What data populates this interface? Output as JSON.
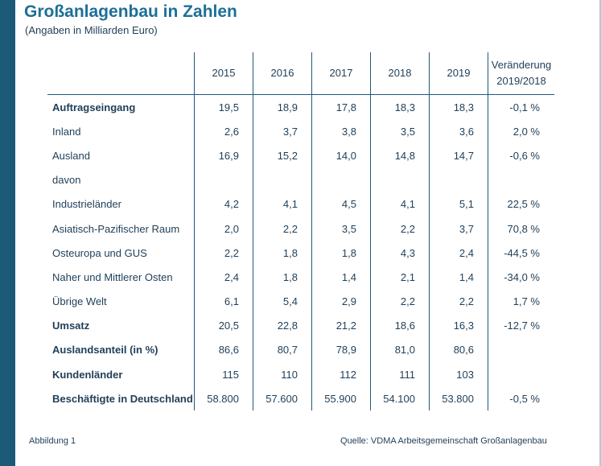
{
  "title": "Großanlagenbau in Zahlen",
  "subtitle": "(Angaben in Milliarden Euro)",
  "columns": [
    "2015",
    "2016",
    "2017",
    "2018",
    "2019"
  ],
  "change_header": [
    "Veränderung",
    "2019/2018"
  ],
  "rows": [
    {
      "label": "Auftragseingang",
      "bold": true,
      "values": [
        "19,5",
        "18,9",
        "17,8",
        "18,3",
        "18,3"
      ],
      "change": "-0,1 %"
    },
    {
      "label": "Inland",
      "bold": false,
      "values": [
        "2,6",
        "3,7",
        "3,8",
        "3,5",
        "3,6"
      ],
      "change": "2,0 %"
    },
    {
      "label": "Ausland",
      "bold": false,
      "values": [
        "16,9",
        "15,2",
        "14,0",
        "14,8",
        "14,7"
      ],
      "change": "-0,6 %"
    },
    {
      "label": "davon",
      "bold": false,
      "values": [
        "",
        "",
        "",
        "",
        ""
      ],
      "change": ""
    },
    {
      "label": "Industrieländer",
      "bold": false,
      "values": [
        "4,2",
        "4,1",
        "4,5",
        "4,1",
        "5,1"
      ],
      "change": "22,5 %"
    },
    {
      "label": "Asiatisch-Pazifischer Raum",
      "bold": false,
      "values": [
        "2,0",
        "2,2",
        "3,5",
        "2,2",
        "3,7"
      ],
      "change": "70,8 %"
    },
    {
      "label": "Osteuropa und GUS",
      "bold": false,
      "values": [
        "2,2",
        "1,8",
        "1,8",
        "4,3",
        "2,4"
      ],
      "change": "-44,5 %"
    },
    {
      "label": "Naher und Mittlerer Osten",
      "bold": false,
      "values": [
        "2,4",
        "1,8",
        "1,4",
        "2,1",
        "1,4"
      ],
      "change": "-34,0 %"
    },
    {
      "label": "Übrige Welt",
      "bold": false,
      "values": [
        "6,1",
        "5,4",
        "2,9",
        "2,2",
        "2,2"
      ],
      "change": "1,7 %"
    },
    {
      "label": "Umsatz",
      "bold": true,
      "values": [
        "20,5",
        "22,8",
        "21,2",
        "18,6",
        "16,3"
      ],
      "change": "-12,7 %"
    },
    {
      "label": "Auslandsanteil (in %)",
      "bold": true,
      "values": [
        "86,6",
        "80,7",
        "78,9",
        "81,0",
        "80,6"
      ],
      "change": ""
    },
    {
      "label": "Kundenländer",
      "bold": true,
      "values": [
        "115",
        "110",
        "112",
        "111",
        "103"
      ],
      "change": ""
    },
    {
      "label": "Beschäftigte in Deutschland",
      "bold": true,
      "values": [
        "58.800",
        "57.600",
        "55.900",
        "54.100",
        "53.800"
      ],
      "change": "-0,5 %"
    }
  ],
  "footer": {
    "figure_label": "Abbildung 1",
    "source": "Quelle: VDMA Arbeitsgemeinschaft Großanlagenbau"
  },
  "colors": {
    "accent_bar": "#1c5a78",
    "title": "#1d6f96",
    "text": "#1f3e57"
  }
}
